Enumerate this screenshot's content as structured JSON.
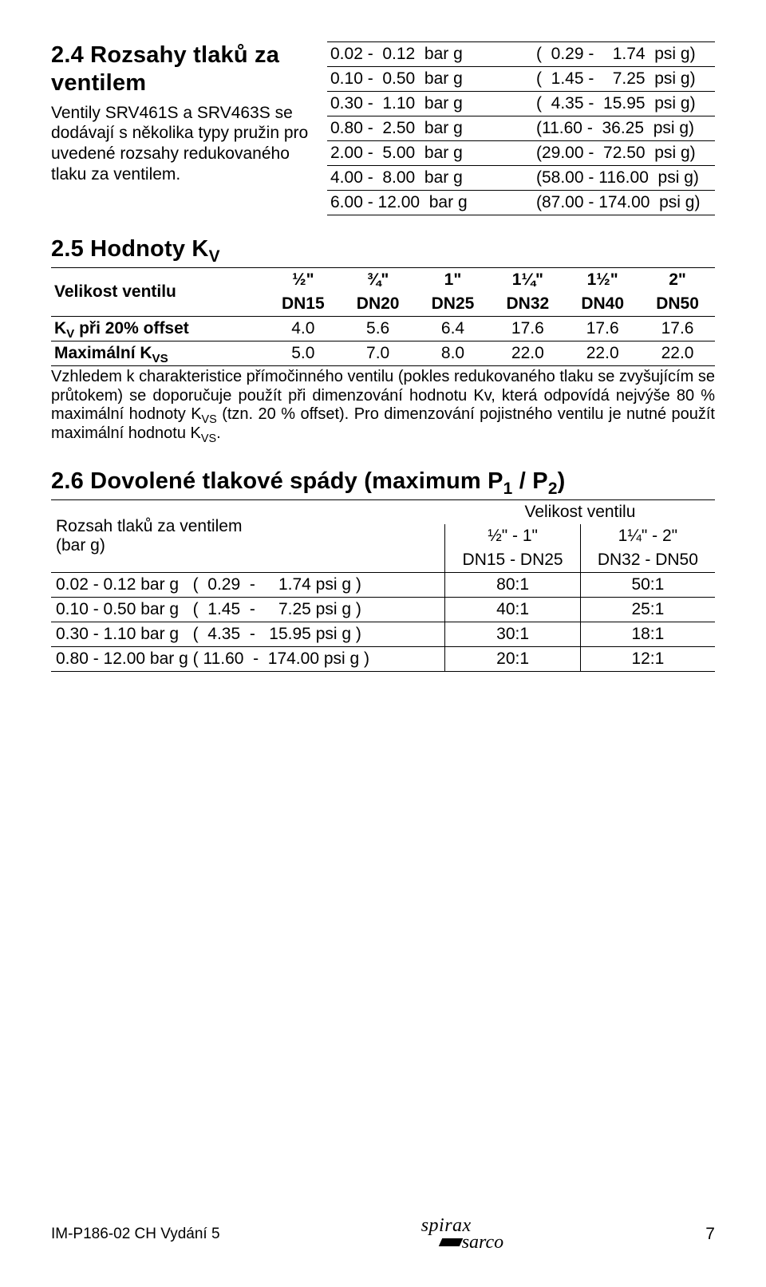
{
  "sect24": {
    "title": "2.4 Rozsahy tlaků za ventilem",
    "left_text": "Ventily SRV461S a SRV463S se dodávají s několika typy pružin pro uvedené rozsahy redukovaného tlaku za ventilem.",
    "rows": [
      {
        "barg": "0.02 -  0.12  bar g",
        "psig": "(  0.29 -    1.74  psi g)"
      },
      {
        "barg": "0.10 -  0.50  bar g",
        "psig": "(  1.45 -    7.25  psi g)"
      },
      {
        "barg": "0.30 -  1.10  bar g",
        "psig": "(  4.35 -  15.95  psi g)"
      },
      {
        "barg": "0.80 -  2.50  bar g",
        "psig": "(11.60 -  36.25  psi g)"
      },
      {
        "barg": "2.00 -  5.00  bar g",
        "psig": "(29.00 -  72.50  psi g)"
      },
      {
        "barg": "4.00 -  8.00  bar g",
        "psig": "(58.00 - 116.00  psi g)"
      },
      {
        "barg": "6.00 - 12.00  bar g",
        "psig": "(87.00 - 174.00  psi g)"
      }
    ]
  },
  "sect25": {
    "title": "2.5 Hodnoty K",
    "corner_label": "Velikost ventilu",
    "sizes_top": [
      "½\"",
      "¾\"",
      "1\"",
      "1¼\"",
      "1½\"",
      "2\""
    ],
    "sizes_bot": [
      "DN15",
      "DN20",
      "DN25",
      "DN32",
      "DN40",
      "DN50"
    ],
    "row_offset": {
      "label": "K",
      "label_suffix": " při 20% offset",
      "vals": [
        "4.0",
        "5.6",
        "6.4",
        "17.6",
        "17.6",
        "17.6"
      ]
    },
    "row_max": {
      "label": "Maximální K",
      "vals": [
        "5.0",
        "7.0",
        "8.0",
        "22.0",
        "22.0",
        "22.0"
      ]
    },
    "note": "Vzhledem k charakteristice přímočinného ventilu (pokles redukovaného tlaku se zvyšujícím se průtokem) se doporučuje použít při dimenzování hodnotu Kv, která odpovídá nejvýše 80 % maximální hodnoty K"
  },
  "sect25_note_tail1": " (tzn. 20 % offset). Pro dimenzování pojistného ventilu je nutné použít maximální hodnotu K",
  "sect25_note_tail2": ".",
  "sect26": {
    "title": "2.6 Dovolené tlakové spády (maximum P1 / P2)",
    "left_head1": "Rozsah tlaků za ventilem",
    "left_head2": "(bar g)",
    "vv_head": "Velikost ventilu",
    "col_a_top": "½\" - 1\"",
    "col_a_bot": "DN15 - DN25",
    "col_b_top": "1¼\" - 2\"",
    "col_b_bot": "DN32 - DN50",
    "rows": [
      {
        "range": "0.02 - 0.12 bar g   (  0.29  -     1.74 psi g )",
        "a": "80:1",
        "b": "50:1"
      },
      {
        "range": "0.10 - 0.50 bar g   (  1.45  -     7.25 psi g )",
        "a": "40:1",
        "b": "25:1"
      },
      {
        "range": "0.30 - 1.10 bar g   (  4.35  -   15.95 psi g )",
        "a": "30:1",
        "b": "18:1"
      },
      {
        "range": "0.80 - 12.00 bar g ( 11.60  -  174.00 psi g )",
        "a": "20:1",
        "b": "12:1"
      }
    ]
  },
  "footer": {
    "left": "IM-P186-02  CH Vydání 5",
    "page": "7",
    "logo1": "spirax",
    "logo2": "sarco"
  }
}
